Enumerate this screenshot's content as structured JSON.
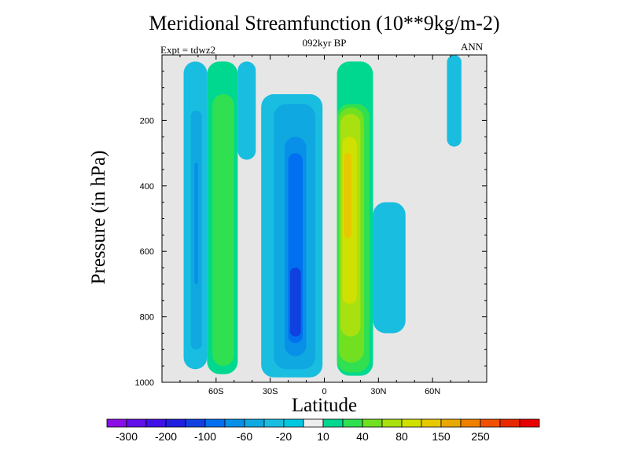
{
  "chart_data": {
    "type": "heatmap",
    "title": "Meridional Streamfunction (10**9kg/m-2)",
    "subtitle": "092kyr BP",
    "left_annotation": "Expt = tdwz2",
    "right_annotation": "ANN",
    "xlabel": "Latitude",
    "ylabel": "Pressure (in hPa)",
    "xlim": [
      -90,
      90
    ],
    "ylim": [
      1000,
      0
    ],
    "x_ticks": [
      {
        "value": -60,
        "label": "60S"
      },
      {
        "value": -30,
        "label": "30S"
      },
      {
        "value": 0,
        "label": "0"
      },
      {
        "value": 30,
        "label": "30N"
      },
      {
        "value": 60,
        "label": "60N"
      }
    ],
    "y_ticks": [
      {
        "value": 200,
        "label": "200"
      },
      {
        "value": 400,
        "label": "400"
      },
      {
        "value": 600,
        "label": "600"
      },
      {
        "value": 800,
        "label": "800"
      },
      {
        "value": 1000,
        "label": "1000"
      }
    ],
    "background_color": "#e6e6e6",
    "colorbar": {
      "colors": [
        "#8a10e6",
        "#6010e8",
        "#4010e8",
        "#2020e0",
        "#1040e0",
        "#0070f0",
        "#0890e8",
        "#10a8e0",
        "#18bde0",
        "#00c8e0",
        "#ececec",
        "#00d890",
        "#30e050",
        "#70e020",
        "#a8e010",
        "#d0e000",
        "#e8c800",
        "#e8a800",
        "#f08000",
        "#f05000",
        "#e82800",
        "#e80000"
      ],
      "labels": [
        {
          "after_box": 1,
          "text": "-300"
        },
        {
          "after_box": 3,
          "text": "-200"
        },
        {
          "after_box": 5,
          "text": "-100"
        },
        {
          "after_box": 7,
          "text": "-60"
        },
        {
          "after_box": 9,
          "text": "-20"
        },
        {
          "after_box": 11,
          "text": "10"
        },
        {
          "after_box": 13,
          "text": "40"
        },
        {
          "after_box": 15,
          "text": "80"
        },
        {
          "after_box": 17,
          "text": "150"
        },
        {
          "after_box": 19,
          "text": "250"
        }
      ]
    },
    "cells": [
      {
        "lat_range": [
          -78,
          -65
        ],
        "p_range": [
          20,
          960
        ],
        "level_color": "#18bde0"
      },
      {
        "lat_range": [
          -74,
          -68
        ],
        "p_range": [
          170,
          900
        ],
        "level_color": "#10a8e0"
      },
      {
        "lat_range": [
          -72,
          -70
        ],
        "p_range": [
          330,
          700
        ],
        "level_color": "#0890e8"
      },
      {
        "lat_range": [
          -65,
          -48
        ],
        "p_range": [
          20,
          975
        ],
        "level_color": "#00d890"
      },
      {
        "lat_range": [
          -62,
          -50
        ],
        "p_range": [
          120,
          950
        ],
        "level_color": "#30e050"
      },
      {
        "lat_range": [
          -48,
          -38
        ],
        "p_range": [
          20,
          320
        ],
        "level_color": "#18bde0"
      },
      {
        "lat_range": [
          -35,
          -1
        ],
        "p_range": [
          120,
          985
        ],
        "level_color": "#18bde0"
      },
      {
        "lat_range": [
          -28,
          -5
        ],
        "p_range": [
          150,
          960
        ],
        "level_color": "#10a8e0"
      },
      {
        "lat_range": [
          -22,
          -10
        ],
        "p_range": [
          250,
          920
        ],
        "level_color": "#0890e8"
      },
      {
        "lat_range": [
          -20,
          -12
        ],
        "p_range": [
          300,
          880
        ],
        "level_color": "#0070f0"
      },
      {
        "lat_range": [
          -19,
          -13
        ],
        "p_range": [
          650,
          860
        ],
        "level_color": "#1040e0"
      },
      {
        "lat_range": [
          7,
          27
        ],
        "p_range": [
          20,
          980
        ],
        "level_color": "#00d890"
      },
      {
        "lat_range": [
          7,
          25
        ],
        "p_range": [
          150,
          970
        ],
        "level_color": "#30e050"
      },
      {
        "lat_range": [
          8,
          22
        ],
        "p_range": [
          160,
          940
        ],
        "level_color": "#70e020"
      },
      {
        "lat_range": [
          9,
          20
        ],
        "p_range": [
          180,
          860
        ],
        "level_color": "#a8e010"
      },
      {
        "lat_range": [
          10,
          18
        ],
        "p_range": [
          250,
          760
        ],
        "level_color": "#d0e000"
      },
      {
        "lat_range": [
          11,
          15
        ],
        "p_range": [
          300,
          560
        ],
        "level_color": "#e8c800"
      },
      {
        "lat_range": [
          27,
          45
        ],
        "p_range": [
          450,
          850
        ],
        "level_color": "#18bde0"
      },
      {
        "lat_range": [
          68,
          76
        ],
        "p_range": [
          0,
          280
        ],
        "level_color": "#18bde0"
      }
    ]
  }
}
